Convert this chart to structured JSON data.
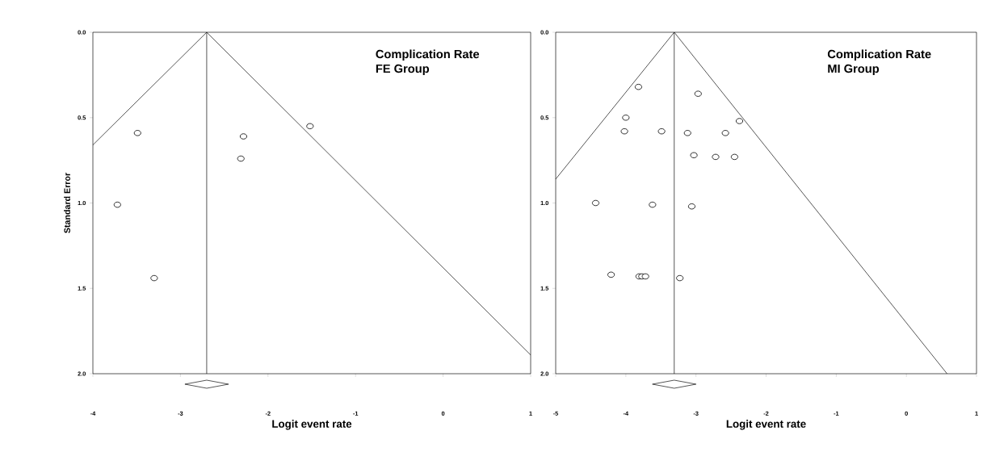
{
  "chart_data": [
    {
      "type": "scatter",
      "title": "Complication Rate",
      "subtitle": "FE Group",
      "xlabel": "Logit event rate",
      "ylabel": "Standard Error",
      "xlim": [
        -4,
        1
      ],
      "xticks": [
        -4,
        -3,
        -2,
        -1,
        0,
        1
      ],
      "ylim": [
        2.0,
        0.0
      ],
      "yticks": [
        {
          "value": 0,
          "label": "0.0"
        },
        {
          "value": 0.5,
          "label": "0.5"
        },
        {
          "value": 1,
          "label": "1.0"
        },
        {
          "value": 1.5,
          "label": "1.5"
        },
        {
          "value": 2,
          "label": "2.0"
        }
      ],
      "ref_lines": [
        {
          "axis": "x",
          "value": -2.7,
          "color": "#000000"
        }
      ],
      "series": [
        {
          "color": "#000000",
          "marker": "circle",
          "x": [
            -3.49,
            -3.72,
            -2.28,
            -2.31,
            -1.52,
            -3.3
          ],
          "values": [
            0.59,
            1.01,
            0.61,
            0.74,
            0.55,
            1.44
          ]
        },
        {
          "type": "line",
          "color": "#000000",
          "marker": "none",
          "x": [
            -4,
            -2.7,
            1
          ],
          "values": [
            0.66,
            0,
            1.89
          ]
        }
      ]
    },
    {
      "type": "scatter",
      "title": "Complication Rate",
      "subtitle": "MI Group",
      "xlabel": "Logit event rate",
      "xlim": [
        -5,
        1
      ],
      "xticks": [
        -5,
        -4,
        -3,
        -2,
        -1,
        0,
        1
      ],
      "ylim": [
        2.0,
        0.0
      ],
      "yticks": [
        {
          "value": 0,
          "label": "0.0"
        },
        {
          "value": 0.5,
          "label": "0.5"
        },
        {
          "value": 1,
          "label": "1.0"
        },
        {
          "value": 1.5,
          "label": "1.5"
        },
        {
          "value": 2,
          "label": "2.0"
        }
      ],
      "ref_lines": [
        {
          "axis": "x",
          "value": -3.31,
          "color": "#000000"
        }
      ],
      "series": [
        {
          "color": "#000000",
          "marker": "circle",
          "x": [
            -3.82,
            -2.97,
            -4.0,
            -2.38,
            -4.02,
            -3.49,
            -3.12,
            -2.58,
            -3.03,
            -2.72,
            -2.45,
            -4.43,
            -3.62,
            -3.06,
            -4.21,
            -3.81,
            -3.77,
            -3.72,
            -3.23
          ],
          "values": [
            0.32,
            0.36,
            0.5,
            0.52,
            0.58,
            0.58,
            0.59,
            0.59,
            0.72,
            0.73,
            0.73,
            1.0,
            1.01,
            1.02,
            1.42,
            1.43,
            1.43,
            1.43,
            1.44
          ]
        },
        {
          "type": "line",
          "color": "#000000",
          "marker": "none",
          "x": [
            -5,
            -3.31,
            0.58
          ],
          "values": [
            0.86,
            0,
            2.0
          ]
        }
      ]
    }
  ]
}
